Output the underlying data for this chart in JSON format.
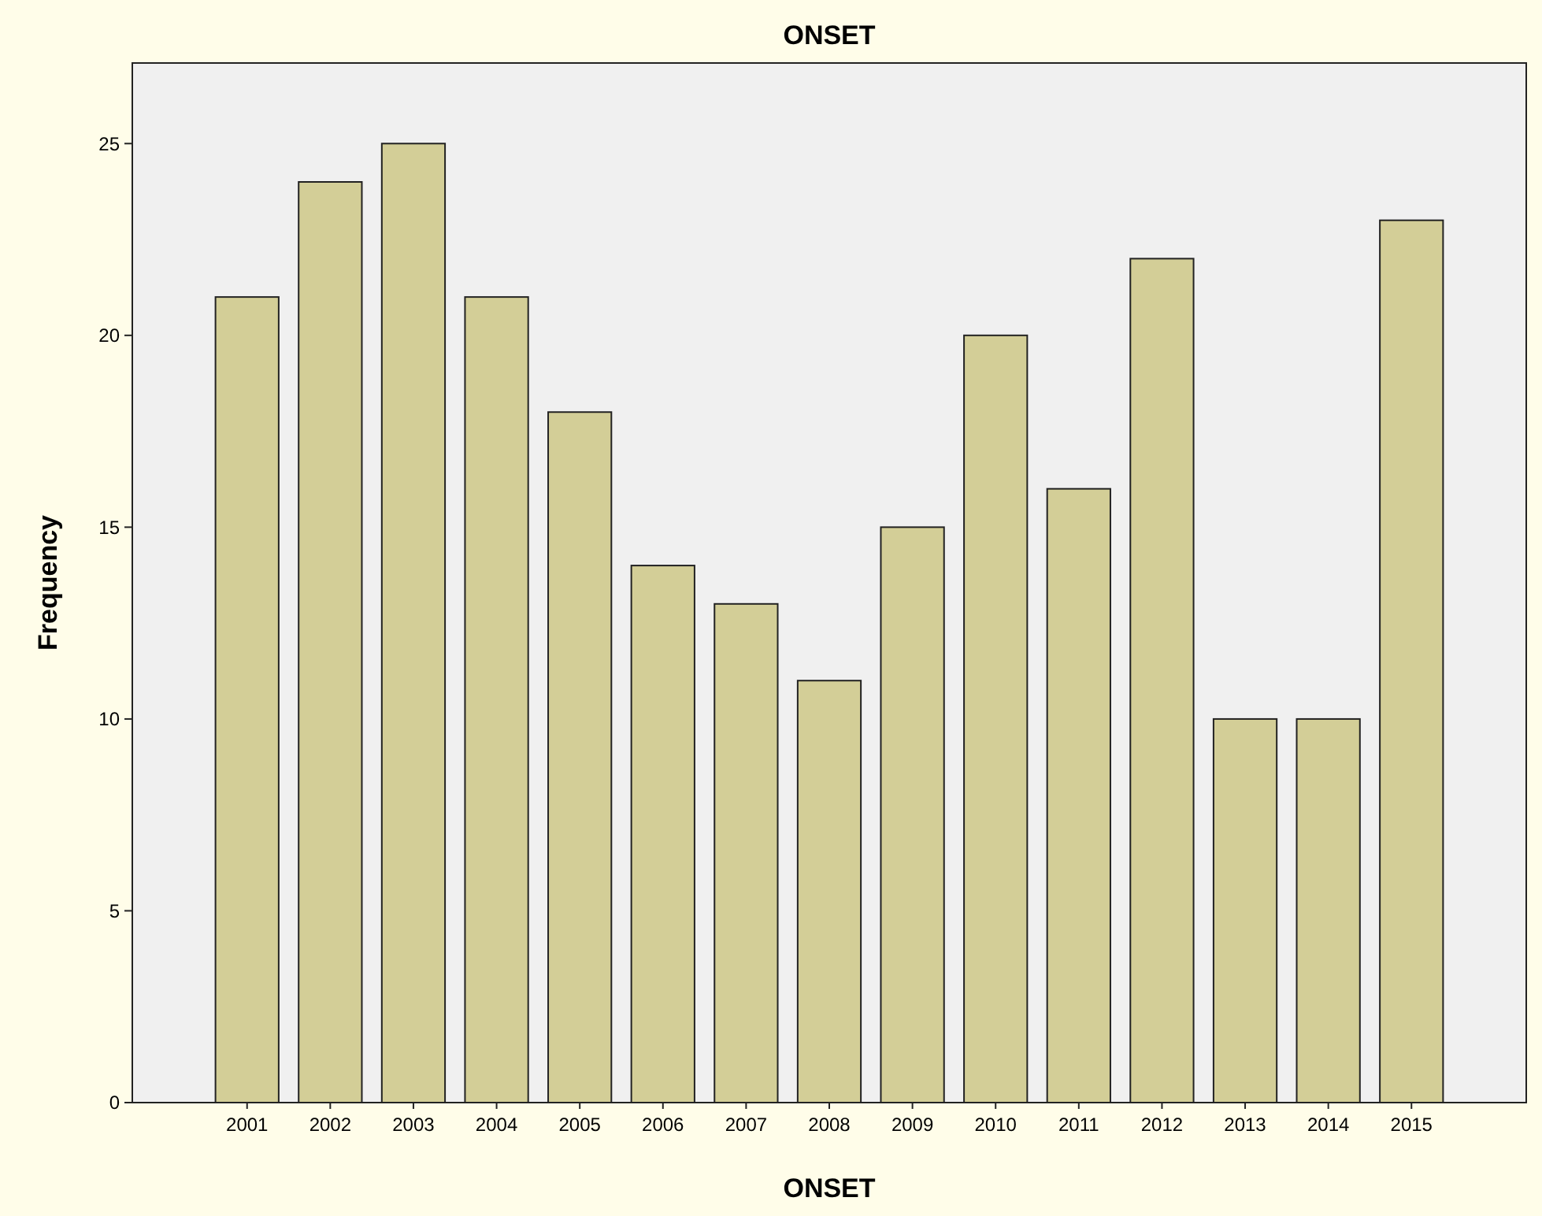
{
  "chart_data": {
    "type": "bar",
    "title": "ONSET",
    "xlabel": "ONSET",
    "ylabel": "Frequency",
    "categories": [
      "2001",
      "2002",
      "2003",
      "2004",
      "2005",
      "2006",
      "2007",
      "2008",
      "2009",
      "2010",
      "2011",
      "2012",
      "2013",
      "2014",
      "2015"
    ],
    "values": [
      21,
      24,
      25,
      21,
      18,
      14,
      13,
      11,
      15,
      20,
      16,
      22,
      10,
      10,
      23
    ],
    "color": "#d3ce97",
    "ylim": [
      0,
      27.1
    ],
    "yticks": [
      0,
      5,
      10,
      15,
      20,
      25
    ]
  }
}
